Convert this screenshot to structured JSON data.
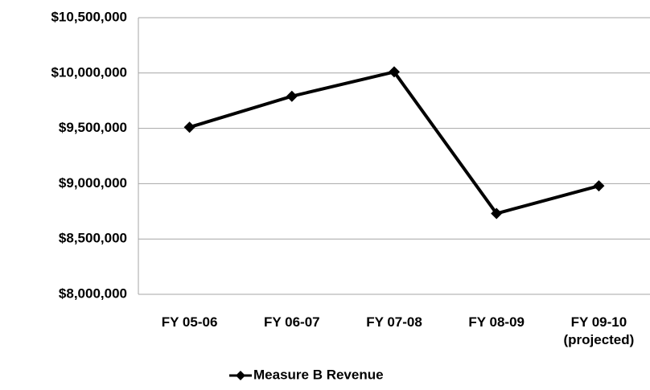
{
  "chart_data": {
    "type": "line",
    "categories": [
      "FY 05-06",
      "FY 06-07",
      "FY 07-08",
      "FY 08-09",
      "FY 09-10\n(projected)"
    ],
    "series": [
      {
        "name": "Measure B Revenue",
        "color": "#000000",
        "values": [
          9510000,
          9790000,
          10010000,
          8730000,
          8980000
        ]
      }
    ],
    "ylim": [
      8000000,
      10500000
    ],
    "yticks": [
      {
        "value": 8000000,
        "label": "$8,000,000"
      },
      {
        "value": 8500000,
        "label": "$8,500,000"
      },
      {
        "value": 9000000,
        "label": "$9,000,000"
      },
      {
        "value": 9500000,
        "label": "$9,500,000"
      },
      {
        "value": 10000000,
        "label": "$10,000,000"
      },
      {
        "value": 10500000,
        "label": "$10,500,000"
      }
    ],
    "grid": true,
    "legend": "bottom"
  }
}
